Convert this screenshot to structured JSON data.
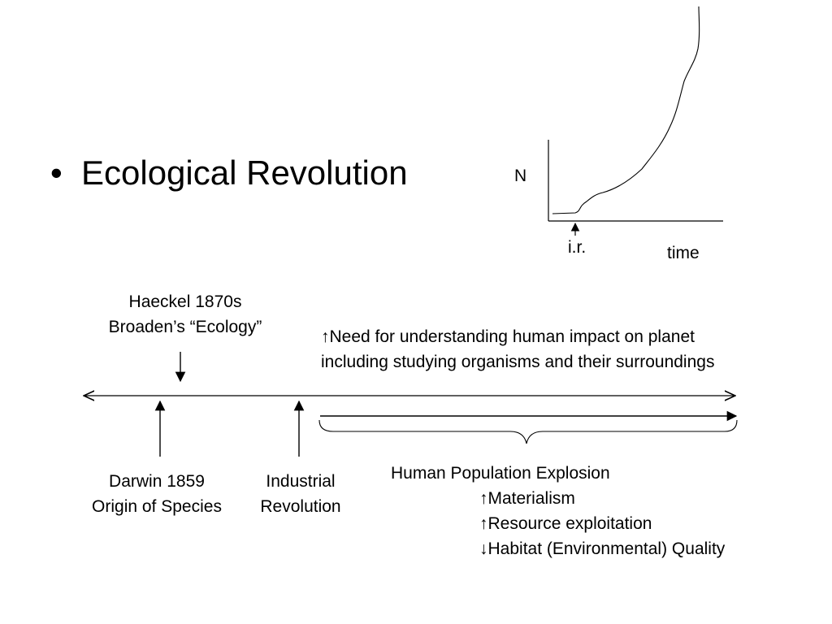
{
  "slide": {
    "bullet": "Ecological Revolution",
    "bullet_marker": "•"
  },
  "graph": {
    "y_label": "N",
    "x_label": "time",
    "marker_label": "i.r."
  },
  "timeline": {
    "haeckel": {
      "line1": "Haeckel 1870s",
      "line2": "Broaden’s “Ecology”"
    },
    "need": {
      "line1": "↑Need for understanding human impact on planet",
      "line2": "including studying organisms and their surroundings"
    },
    "darwin": {
      "line1": "Darwin 1859",
      "line2": "Origin of Species"
    },
    "industrial": {
      "line1": "Industrial",
      "line2": "Revolution"
    },
    "explosion": {
      "title": "Human Population Explosion",
      "items": [
        "↑Materialism",
        "↑Resource exploitation",
        "↓Habitat (Environmental) Quality"
      ]
    }
  }
}
